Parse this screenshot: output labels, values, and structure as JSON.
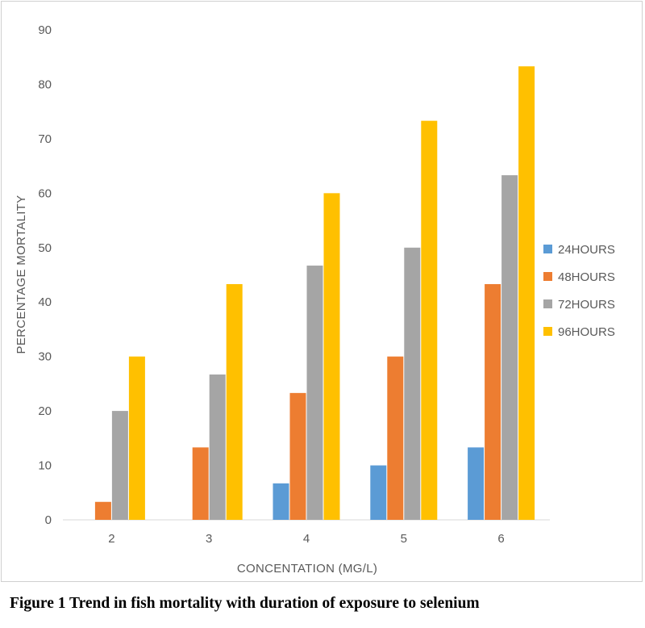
{
  "caption": "Figure 1 Trend in fish mortality with duration of exposure to selenium",
  "chart_data": {
    "type": "bar",
    "title": "",
    "xlabel": "CONCENTATION (MG/L)",
    "ylabel": "PERCENTAGE MORTALITY",
    "categories": [
      "2",
      "3",
      "4",
      "5",
      "6"
    ],
    "ylim": [
      0,
      90
    ],
    "yticks": [
      0,
      10,
      20,
      30,
      40,
      50,
      60,
      70,
      80,
      90
    ],
    "grid": false,
    "legend_position": "right",
    "series": [
      {
        "name": "24HOURS",
        "color": "#5B9BD5",
        "values": [
          0,
          0,
          6.7,
          10,
          13.3
        ]
      },
      {
        "name": "48HOURS",
        "color": "#ED7D31",
        "values": [
          3.3,
          13.3,
          23.3,
          30,
          43.3
        ]
      },
      {
        "name": "72HOURS",
        "color": "#A5A5A5",
        "values": [
          20,
          26.7,
          46.7,
          50,
          63.3
        ]
      },
      {
        "name": "96HOURS",
        "color": "#FFC000",
        "values": [
          30,
          43.3,
          60,
          73.3,
          83.3
        ]
      }
    ]
  }
}
